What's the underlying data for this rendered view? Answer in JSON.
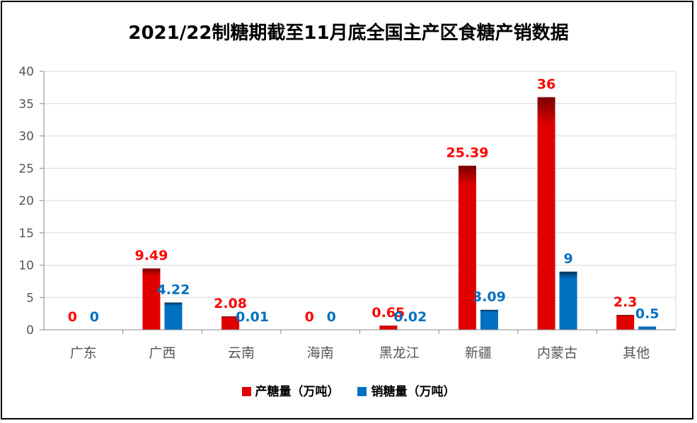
{
  "chart_data": {
    "type": "bar",
    "title": "2021/22制糖期截至11月底全国主产区食糖产销数据",
    "categories": [
      "广东",
      "广西",
      "云南",
      "海南",
      "黑龙江",
      "新疆",
      "内蒙古",
      "其他"
    ],
    "series": [
      {
        "name": "产糖量（万吨）",
        "color": "#e00000",
        "label_color": "#ff0000",
        "values": [
          0,
          9.49,
          2.08,
          0,
          0.65,
          25.39,
          36,
          2.3
        ],
        "labels": [
          "0",
          "9.49",
          "2.08",
          "0",
          "0.65",
          "25.39",
          "36",
          "2.3"
        ]
      },
      {
        "name": "销糖量（万吨）",
        "color": "#0070c0",
        "label_color": "#0070c0",
        "values": [
          0,
          4.22,
          0.01,
          0,
          0.02,
          3.09,
          9,
          0.5
        ],
        "labels": [
          "0",
          "4.22",
          "0.01",
          "0",
          "0.02",
          "3.09",
          "9",
          "0.5"
        ]
      }
    ],
    "ylim": [
      0,
      40
    ],
    "yticks": [
      "0",
      "5",
      "10",
      "15",
      "20",
      "25",
      "30",
      "35",
      "40"
    ],
    "grid": true,
    "legend_position": "bottom"
  }
}
